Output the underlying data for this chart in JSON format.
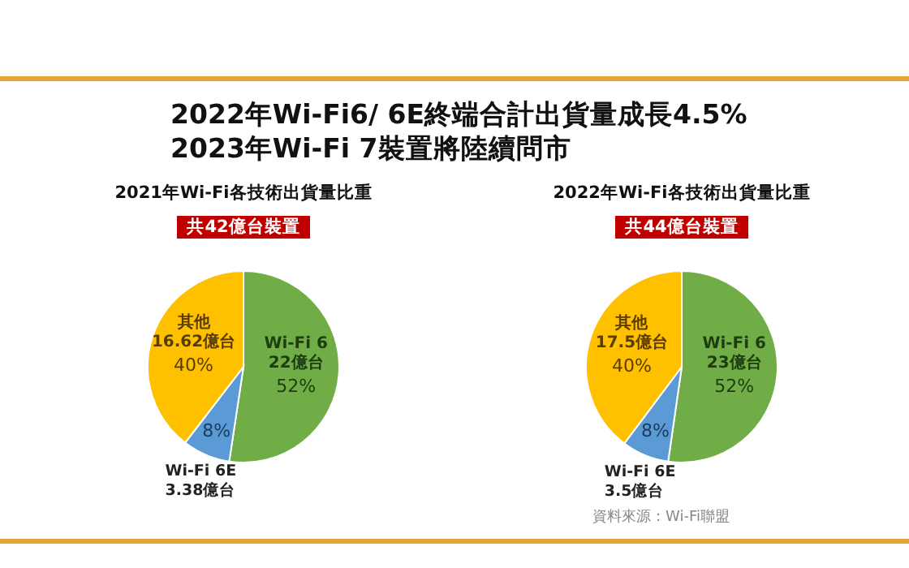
{
  "chart_data": [
    {
      "type": "pie",
      "title": "2022年Wi-Fi6/ 6E終端合計出貨量成長4.5%\n2023年Wi-Fi 7裝置將陸續問市",
      "subtitle": "2021年Wi-Fi各技術出貨量比重",
      "categories": [
        "Wi-Fi 6",
        "Wi-Fi 6E",
        "其他"
      ],
      "values": [
        22,
        3.38,
        16.62
      ],
      "colors": [
        "#70ad47",
        "#5b9bd5",
        "#ffc000"
      ],
      "value_labels": [
        "22億台",
        "3.38億台",
        "16.62億台"
      ],
      "legend": false,
      "annotations": [
        "共42億台裝置",
        {
          "text": "52%",
          "x": "Wi-Fi 6"
        },
        {
          "text": "8%",
          "x": "Wi-Fi 6E"
        },
        {
          "text": "40%",
          "x": "其他"
        }
      ]
    },
    {
      "type": "pie",
      "subtitle": "2022年Wi-Fi各技術出貨量比重",
      "categories": [
        "Wi-Fi 6",
        "Wi-Fi 6E",
        "其他"
      ],
      "values": [
        23,
        3.5,
        17.5
      ],
      "colors": [
        "#70ad47",
        "#5b9bd5",
        "#ffc000"
      ],
      "value_labels": [
        "23億台",
        "3.5億台",
        "17.5億台"
      ],
      "legend": false,
      "annotations": [
        "共44億台裝置",
        {
          "text": "52%",
          "x": "Wi-Fi 6"
        },
        {
          "text": "8%",
          "x": "Wi-Fi 6E"
        },
        {
          "text": "40%",
          "x": "其他"
        },
        "資料來源：Wi-Fi聯盟"
      ]
    }
  ]
}
